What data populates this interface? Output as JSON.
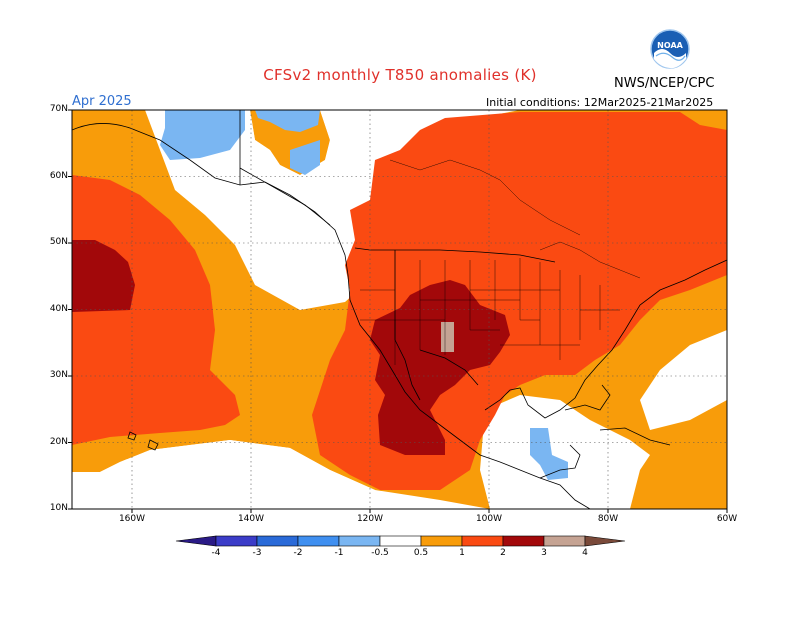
{
  "header": {
    "title": "CFSv2 monthly T850 anomalies (K)",
    "month": "Apr 2025",
    "agency": "NWS/NCEP/CPC",
    "initial_conditions": "Initial conditions: 12Mar2025-21Mar2025",
    "logo_text": "NOAA"
  },
  "axes": {
    "lat_labels": [
      "70N",
      "60N",
      "50N",
      "40N",
      "30N",
      "20N",
      "10N"
    ],
    "lon_labels": [
      "160W",
      "140W",
      "120W",
      "100W",
      "80W",
      "60W"
    ]
  },
  "colorbar": {
    "labels": [
      "-4",
      "-3",
      "-2",
      "-1",
      "-0.5",
      "0.5",
      "1",
      "2",
      "3",
      "4"
    ],
    "colors": {
      "lt_m4": "#2a1a86",
      "m4_m3": "#3b3cc8",
      "m3_m2": "#2a6ad8",
      "m2_m1": "#3f8ff0",
      "m1_m05": "#7ab6f2",
      "neutral": "#ffffff",
      "p05_p1": "#f89c0a",
      "p1_p2": "#fa4a12",
      "p2_p3": "#a2080a",
      "p3_p4": "#c5a393",
      "gt_p4": "#7a4a3a"
    }
  }
}
